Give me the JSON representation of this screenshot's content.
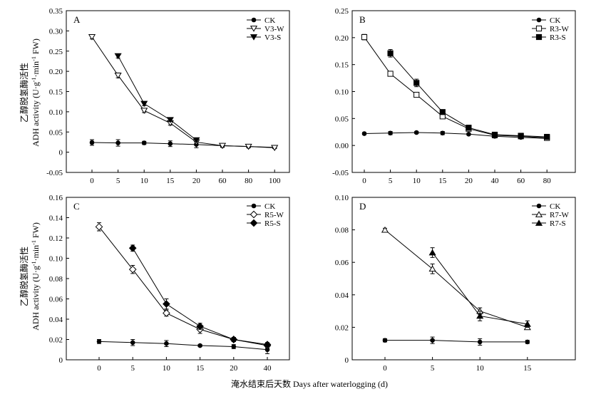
{
  "figure": {
    "xlabel": "淹水结束后天数 Days after waterlogging (d)",
    "ylabel_cn": "乙醇脱氢酶活性",
    "ylabel_en": "ADH activity (U·g-1·min-1 FW)",
    "ylabel_en_base": "ADH activity (U·g",
    "ylabel_en_exp1": "-1",
    "ylabel_en_mid": "·min",
    "ylabel_en_exp2": "-1",
    "ylabel_en_end": " FW)"
  },
  "chart_data": [
    {
      "panel": "A",
      "type": "line",
      "categories": [
        "0",
        "5",
        "10",
        "15",
        "20",
        "60",
        "80",
        "100"
      ],
      "ylim": [
        -0.05,
        0.35
      ],
      "yticks": [
        "-0.05",
        "0",
        "0.05",
        "0.10",
        "0.15",
        "0.20",
        "0.25",
        "0.30",
        "0.35"
      ],
      "ytick_values": [
        -0.05,
        0,
        0.05,
        0.1,
        0.15,
        0.2,
        0.25,
        0.3,
        0.35
      ],
      "legend_position": "top-right",
      "grid": false,
      "series": [
        {
          "name": "CK",
          "marker": "circle",
          "x": [
            0,
            1,
            2,
            3,
            4,
            5,
            6,
            7
          ],
          "values": [
            0.024,
            0.023,
            0.023,
            0.021,
            0.019,
            0.016,
            0.014,
            0.012
          ],
          "err": [
            0.007,
            0.008,
            0.004,
            0.007,
            0.008,
            0.004,
            0.003,
            0.003
          ]
        },
        {
          "name": "V3-W",
          "marker": "triangle-down-open",
          "x": [
            0,
            1,
            2,
            3,
            4,
            5,
            6,
            7
          ],
          "values": [
            0.285,
            0.19,
            0.103,
            0.072,
            0.025,
            0.016,
            0.014,
            0.011
          ],
          "err": [
            0.005,
            0.006,
            0.005,
            0.005,
            0.004,
            0.003,
            0.003,
            0.002
          ]
        },
        {
          "name": "V3-S",
          "marker": "triangle-down-filled",
          "x": [
            1,
            2,
            3,
            4
          ],
          "values": [
            0.238,
            0.12,
            0.08,
            0.03
          ],
          "err": [
            0.005,
            0.005,
            0.004,
            0.004
          ]
        }
      ]
    },
    {
      "panel": "B",
      "type": "line",
      "categories": [
        "0",
        "5",
        "10",
        "15",
        "20",
        "40",
        "60",
        "80"
      ],
      "ylim": [
        -0.05,
        0.25
      ],
      "yticks": [
        "-0.05",
        "0.00",
        "0.05",
        "0.10",
        "0.15",
        "0.20",
        "0.25"
      ],
      "ytick_values": [
        -0.05,
        0,
        0.05,
        0.1,
        0.15,
        0.2,
        0.25
      ],
      "legend_position": "top-right",
      "grid": false,
      "series": [
        {
          "name": "CK",
          "marker": "circle",
          "x": [
            0,
            1,
            2,
            3,
            4,
            5,
            6,
            7
          ],
          "values": [
            0.022,
            0.023,
            0.024,
            0.023,
            0.021,
            0.017,
            0.015,
            0.013
          ],
          "err": [
            0.002,
            0.003,
            0.002,
            0.003,
            0.002,
            0.003,
            0.002,
            0.002
          ]
        },
        {
          "name": "R3-W",
          "marker": "square-open",
          "x": [
            0,
            1,
            2,
            3,
            4,
            5,
            6,
            7
          ],
          "values": [
            0.201,
            0.133,
            0.094,
            0.054,
            0.031,
            0.019,
            0.017,
            0.014
          ],
          "err": [
            0.005,
            0.004,
            0.004,
            0.004,
            0.003,
            0.003,
            0.003,
            0.003
          ]
        },
        {
          "name": "R3-S",
          "marker": "square-filled",
          "x": [
            1,
            2,
            3,
            4,
            5,
            6,
            7
          ],
          "values": [
            0.171,
            0.116,
            0.062,
            0.033,
            0.02,
            0.018,
            0.016
          ],
          "err": [
            0.007,
            0.007,
            0.004,
            0.003,
            0.003,
            0.003,
            0.003
          ]
        }
      ]
    },
    {
      "panel": "C",
      "type": "line",
      "categories": [
        "0",
        "5",
        "10",
        "15",
        "20",
        "40"
      ],
      "ylim": [
        0,
        0.16
      ],
      "yticks": [
        "0",
        "0.02",
        "0.04",
        "0.06",
        "0.08",
        "0.10",
        "0.12",
        "0.14",
        "0.16"
      ],
      "ytick_values": [
        0,
        0.02,
        0.04,
        0.06,
        0.08,
        0.1,
        0.12,
        0.14,
        0.16
      ],
      "legend_position": "top-right",
      "grid": false,
      "series": [
        {
          "name": "CK",
          "marker": "circle",
          "x": [
            0,
            1,
            2,
            3,
            4,
            5
          ],
          "values": [
            0.018,
            0.017,
            0.016,
            0.014,
            0.013,
            0.01
          ],
          "err": [
            0.002,
            0.003,
            0.003,
            0.001,
            0.002,
            0.004
          ]
        },
        {
          "name": "R5-W",
          "marker": "diamond-open",
          "x": [
            0,
            1,
            2,
            3,
            4,
            5
          ],
          "values": [
            0.131,
            0.089,
            0.046,
            0.03,
            0.02,
            0.014
          ],
          "err": [
            0.004,
            0.004,
            0.003,
            0.004,
            0.002,
            0.002
          ]
        },
        {
          "name": "R5-S",
          "marker": "diamond-filled",
          "x": [
            1,
            2,
            3,
            4,
            5
          ],
          "values": [
            0.11,
            0.055,
            0.033,
            0.02,
            0.015
          ],
          "err": [
            0.003,
            0.005,
            0.003,
            0.002,
            0.002
          ]
        }
      ]
    },
    {
      "panel": "D",
      "type": "line",
      "categories": [
        "0",
        "5",
        "10",
        "15"
      ],
      "ylim": [
        0,
        0.1
      ],
      "yticks": [
        "0",
        "0.02",
        "0.04",
        "0.06",
        "0.08",
        "0.10"
      ],
      "ytick_values": [
        0,
        0.02,
        0.04,
        0.06,
        0.08,
        0.1
      ],
      "legend_position": "top-right",
      "grid": false,
      "series": [
        {
          "name": "CK",
          "marker": "circle",
          "x": [
            0,
            1,
            2,
            3
          ],
          "values": [
            0.012,
            0.012,
            0.011,
            0.011
          ],
          "err": [
            0.001,
            0.002,
            0.002,
            0.001
          ]
        },
        {
          "name": "R7-W",
          "marker": "triangle-up-open",
          "x": [
            0,
            1,
            2,
            3
          ],
          "values": [
            0.08,
            0.056,
            0.03,
            0.02
          ],
          "err": [
            0.001,
            0.003,
            0.002,
            0.001
          ]
        },
        {
          "name": "R7-S",
          "marker": "triangle-up-filled",
          "x": [
            1,
            2,
            3
          ],
          "values": [
            0.066,
            0.027,
            0.022
          ],
          "err": [
            0.003,
            0.003,
            0.002
          ]
        }
      ]
    }
  ]
}
